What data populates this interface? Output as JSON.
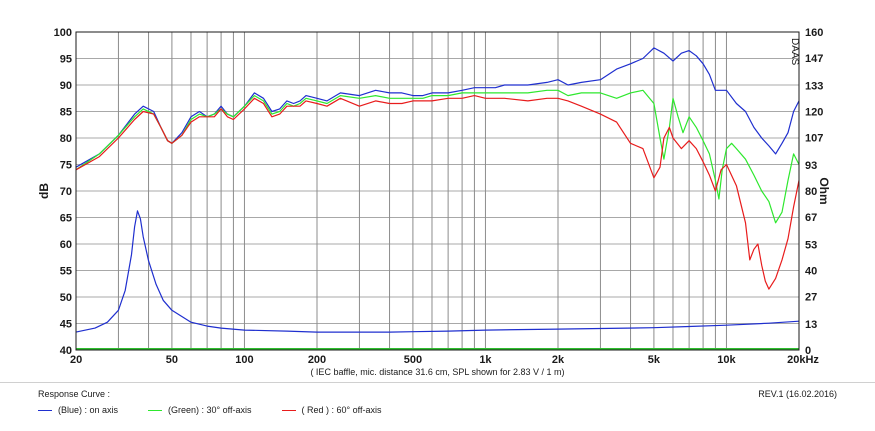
{
  "footer": {
    "caption": "Response Curve :",
    "revision": "REV.1 (16.02.2016)"
  },
  "chart_data": {
    "type": "line",
    "title": "",
    "xlabel": "",
    "ylabel": "dB",
    "y2label": "Ohm",
    "note": "( IEC baffle, mic. distance 31.6 cm, SPL shown for 2.83 V / 1 m)",
    "brand": "DAAS",
    "x_scale": "log",
    "xlim": [
      20,
      20000
    ],
    "ylim": [
      40,
      100
    ],
    "y2lim": [
      0,
      160
    ],
    "grid": true,
    "x_tick_labels": [
      {
        "v": 20,
        "t": "20"
      },
      {
        "v": 50,
        "t": "50"
      },
      {
        "v": 100,
        "t": "100"
      },
      {
        "v": 200,
        "t": "200"
      },
      {
        "v": 500,
        "t": "500"
      },
      {
        "v": 1000,
        "t": "1k"
      },
      {
        "v": 2000,
        "t": "2k"
      },
      {
        "v": 5000,
        "t": "5k"
      },
      {
        "v": 10000,
        "t": "10k"
      },
      {
        "v": 20000,
        "t": "20kHz"
      }
    ],
    "y_ticks": [
      100,
      95,
      90,
      85,
      80,
      75,
      70,
      65,
      60,
      55,
      50,
      45,
      40
    ],
    "y2_ticks": [
      160,
      147,
      133,
      120,
      107,
      93,
      80,
      67,
      53,
      40,
      27,
      13,
      0
    ],
    "colors": {
      "on_axis": "#1f2fcf",
      "off_30": "#2ee82e",
      "off_60": "#e81c1c",
      "impedance": "#1f2fcf",
      "baseline": "#2fbf2f"
    },
    "series": [
      {
        "name": "(Blue) : on axis",
        "axis": "left",
        "color_key": "on_axis",
        "points": [
          [
            20,
            74.5
          ],
          [
            25,
            77
          ],
          [
            30,
            80.5
          ],
          [
            35,
            84.5
          ],
          [
            38,
            86
          ],
          [
            42,
            85
          ],
          [
            45,
            82
          ],
          [
            48,
            79.5
          ],
          [
            50,
            79
          ],
          [
            55,
            81
          ],
          [
            60,
            84
          ],
          [
            65,
            85
          ],
          [
            70,
            84
          ],
          [
            75,
            84.5
          ],
          [
            80,
            86
          ],
          [
            85,
            84.5
          ],
          [
            90,
            84
          ],
          [
            100,
            86
          ],
          [
            110,
            88.5
          ],
          [
            120,
            87.5
          ],
          [
            130,
            85
          ],
          [
            140,
            85.5
          ],
          [
            150,
            87
          ],
          [
            160,
            86.5
          ],
          [
            170,
            87
          ],
          [
            180,
            88
          ],
          [
            200,
            87.5
          ],
          [
            220,
            87
          ],
          [
            250,
            88.5
          ],
          [
            300,
            88
          ],
          [
            350,
            89
          ],
          [
            400,
            88.5
          ],
          [
            450,
            88.5
          ],
          [
            500,
            88
          ],
          [
            550,
            88
          ],
          [
            600,
            88.5
          ],
          [
            700,
            88.5
          ],
          [
            800,
            89
          ],
          [
            900,
            89.5
          ],
          [
            1000,
            89.5
          ],
          [
            1100,
            89.5
          ],
          [
            1200,
            90
          ],
          [
            1500,
            90
          ],
          [
            1800,
            90.5
          ],
          [
            2000,
            91
          ],
          [
            2200,
            90
          ],
          [
            2500,
            90.5
          ],
          [
            3000,
            91
          ],
          [
            3500,
            93
          ],
          [
            4000,
            94
          ],
          [
            4500,
            95
          ],
          [
            5000,
            97
          ],
          [
            5500,
            96
          ],
          [
            6000,
            94.5
          ],
          [
            6500,
            96
          ],
          [
            7000,
            96.5
          ],
          [
            7500,
            95.5
          ],
          [
            8000,
            94
          ],
          [
            8500,
            92
          ],
          [
            9000,
            89
          ],
          [
            10000,
            89
          ],
          [
            11000,
            86.5
          ],
          [
            12000,
            85
          ],
          [
            13000,
            82
          ],
          [
            14000,
            80
          ],
          [
            15000,
            78.5
          ],
          [
            16000,
            77
          ],
          [
            17000,
            79
          ],
          [
            18000,
            81
          ],
          [
            19000,
            85
          ],
          [
            20000,
            87
          ]
        ]
      },
      {
        "name": "(Green) : 30° off-axis",
        "axis": "left",
        "color_key": "off_30",
        "points": [
          [
            20,
            74
          ],
          [
            25,
            77
          ],
          [
            30,
            80.5
          ],
          [
            35,
            84
          ],
          [
            38,
            85.5
          ],
          [
            42,
            84.5
          ],
          [
            45,
            82
          ],
          [
            48,
            79.5
          ],
          [
            50,
            79
          ],
          [
            55,
            80.5
          ],
          [
            60,
            83.5
          ],
          [
            65,
            84.5
          ],
          [
            70,
            84
          ],
          [
            75,
            84.5
          ],
          [
            80,
            85.5
          ],
          [
            85,
            84.5
          ],
          [
            90,
            84
          ],
          [
            100,
            86
          ],
          [
            110,
            88
          ],
          [
            120,
            87
          ],
          [
            130,
            84.5
          ],
          [
            140,
            85
          ],
          [
            150,
            86.5
          ],
          [
            160,
            86
          ],
          [
            170,
            86.5
          ],
          [
            180,
            87.5
          ],
          [
            200,
            87
          ],
          [
            220,
            86.5
          ],
          [
            250,
            88
          ],
          [
            300,
            87.5
          ],
          [
            350,
            88
          ],
          [
            400,
            87.5
          ],
          [
            450,
            87.5
          ],
          [
            500,
            87.5
          ],
          [
            550,
            87.5
          ],
          [
            600,
            88
          ],
          [
            700,
            88
          ],
          [
            800,
            88.5
          ],
          [
            900,
            88.5
          ],
          [
            1000,
            88.5
          ],
          [
            1100,
            88.5
          ],
          [
            1200,
            88.5
          ],
          [
            1500,
            88.5
          ],
          [
            1800,
            89
          ],
          [
            2000,
            89
          ],
          [
            2200,
            88
          ],
          [
            2500,
            88.5
          ],
          [
            3000,
            88.5
          ],
          [
            3500,
            87.5
          ],
          [
            4000,
            88.5
          ],
          [
            4500,
            89
          ],
          [
            5000,
            86.5
          ],
          [
            5300,
            80
          ],
          [
            5500,
            76
          ],
          [
            5800,
            82
          ],
          [
            6000,
            87.5
          ],
          [
            6300,
            84
          ],
          [
            6600,
            81
          ],
          [
            7000,
            84
          ],
          [
            7500,
            82
          ],
          [
            8000,
            79.5
          ],
          [
            8500,
            77
          ],
          [
            9000,
            72
          ],
          [
            9300,
            68.5
          ],
          [
            9600,
            74
          ],
          [
            10000,
            78
          ],
          [
            10500,
            79
          ],
          [
            11000,
            78
          ],
          [
            12000,
            76
          ],
          [
            13000,
            73
          ],
          [
            14000,
            70
          ],
          [
            15000,
            68
          ],
          [
            16000,
            64
          ],
          [
            17000,
            66
          ],
          [
            18000,
            72
          ],
          [
            19000,
            77
          ],
          [
            20000,
            75
          ]
        ]
      },
      {
        "name": "( Red ) : 60° off-axis",
        "axis": "left",
        "color_key": "off_60",
        "points": [
          [
            20,
            74
          ],
          [
            25,
            76.5
          ],
          [
            30,
            80
          ],
          [
            35,
            83.5
          ],
          [
            38,
            85
          ],
          [
            42,
            84.5
          ],
          [
            45,
            82
          ],
          [
            48,
            79.5
          ],
          [
            50,
            79
          ],
          [
            55,
            80.5
          ],
          [
            60,
            83
          ],
          [
            65,
            84
          ],
          [
            70,
            84
          ],
          [
            75,
            84
          ],
          [
            80,
            85.5
          ],
          [
            85,
            84
          ],
          [
            90,
            83.5
          ],
          [
            100,
            85.5
          ],
          [
            110,
            87.5
          ],
          [
            120,
            86.5
          ],
          [
            130,
            84
          ],
          [
            140,
            84.5
          ],
          [
            150,
            86
          ],
          [
            160,
            86
          ],
          [
            170,
            86
          ],
          [
            180,
            87
          ],
          [
            200,
            86.5
          ],
          [
            220,
            86
          ],
          [
            250,
            87.5
          ],
          [
            300,
            86
          ],
          [
            350,
            87
          ],
          [
            400,
            86.5
          ],
          [
            450,
            86.5
          ],
          [
            500,
            87
          ],
          [
            550,
            87
          ],
          [
            600,
            87
          ],
          [
            700,
            87.5
          ],
          [
            800,
            87.5
          ],
          [
            900,
            88
          ],
          [
            1000,
            87.5
          ],
          [
            1100,
            87.5
          ],
          [
            1200,
            87.5
          ],
          [
            1500,
            87
          ],
          [
            1800,
            87.5
          ],
          [
            2000,
            87.5
          ],
          [
            2200,
            87
          ],
          [
            2500,
            86
          ],
          [
            3000,
            84.5
          ],
          [
            3500,
            83
          ],
          [
            4000,
            79
          ],
          [
            4500,
            78
          ],
          [
            5000,
            72.5
          ],
          [
            5300,
            74.5
          ],
          [
            5500,
            80
          ],
          [
            5800,
            82
          ],
          [
            6000,
            80
          ],
          [
            6500,
            78
          ],
          [
            7000,
            79.5
          ],
          [
            7500,
            78
          ],
          [
            8000,
            75.5
          ],
          [
            8500,
            73
          ],
          [
            9000,
            70
          ],
          [
            9500,
            74
          ],
          [
            10000,
            75
          ],
          [
            11000,
            71
          ],
          [
            12000,
            64
          ],
          [
            12500,
            57
          ],
          [
            13000,
            59
          ],
          [
            13500,
            60
          ],
          [
            14000,
            56
          ],
          [
            14500,
            53
          ],
          [
            15000,
            51.5
          ],
          [
            16000,
            53.5
          ],
          [
            17000,
            57
          ],
          [
            18000,
            61
          ],
          [
            19000,
            67
          ],
          [
            20000,
            72
          ]
        ]
      },
      {
        "name": "Impedance",
        "axis": "right",
        "color_key": "impedance",
        "points": [
          [
            20,
            9
          ],
          [
            24,
            11
          ],
          [
            27,
            14
          ],
          [
            30,
            20
          ],
          [
            32,
            30
          ],
          [
            34,
            48
          ],
          [
            35,
            62
          ],
          [
            36,
            70
          ],
          [
            37,
            66
          ],
          [
            38,
            57
          ],
          [
            40,
            45
          ],
          [
            43,
            33
          ],
          [
            46,
            25
          ],
          [
            50,
            20
          ],
          [
            60,
            14
          ],
          [
            70,
            12
          ],
          [
            80,
            11
          ],
          [
            100,
            10
          ],
          [
            150,
            9.5
          ],
          [
            200,
            9
          ],
          [
            300,
            9
          ],
          [
            400,
            9
          ],
          [
            500,
            9.2
          ],
          [
            700,
            9.5
          ],
          [
            1000,
            10
          ],
          [
            1500,
            10.3
          ],
          [
            2000,
            10.5
          ],
          [
            3000,
            10.8
          ],
          [
            5000,
            11.2
          ],
          [
            7000,
            11.8
          ],
          [
            10000,
            12.5
          ],
          [
            15000,
            13.5
          ],
          [
            20000,
            14.5
          ]
        ]
      }
    ]
  }
}
